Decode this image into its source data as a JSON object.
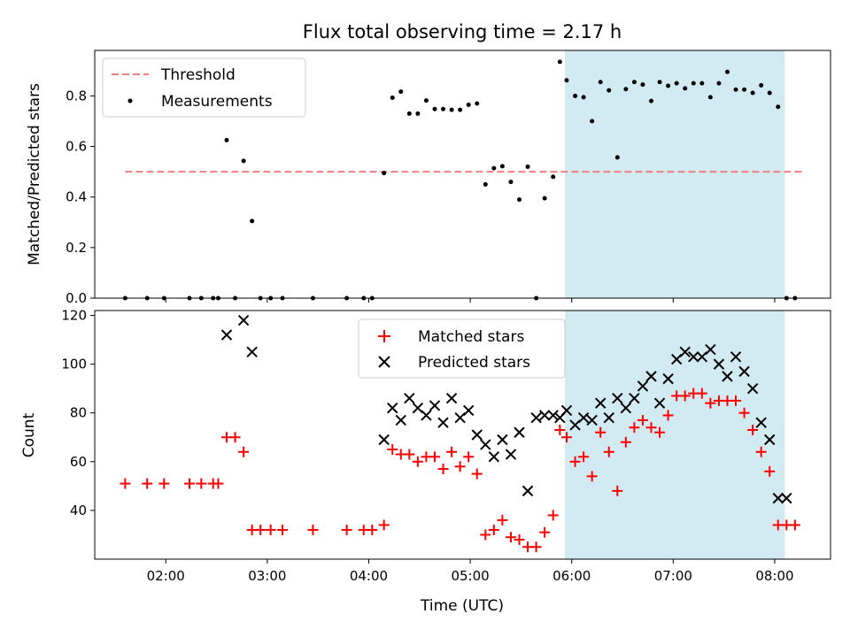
{
  "chart_data": [
    {
      "type": "scatter",
      "title": "Flux total observing time = 2.17 h",
      "xlabel": "",
      "ylabel": "Matched/Predicted stars",
      "x_unit": "hours UTC",
      "xlim": [
        "01:18",
        "08:33"
      ],
      "ylim": [
        0,
        0.98
      ],
      "yticks": [
        0.0,
        0.2,
        0.4,
        0.6,
        0.8
      ],
      "ytick_labels": [
        "0.0",
        "0.2",
        "0.4",
        "0.6",
        "0.8"
      ],
      "xticks": [
        "02:00",
        "03:00",
        "04:00",
        "05:00",
        "06:00",
        "07:00",
        "08:00"
      ],
      "shaded_region": {
        "x_start": "05:56",
        "x_end": "08:06",
        "color": "#add8e6"
      },
      "legend_position": "top-left",
      "series": [
        {
          "name": "Threshold",
          "style": "dashed-line",
          "color": "#f08080",
          "x": [
            "01:36",
            "08:16"
          ],
          "y": [
            0.5,
            0.5
          ]
        },
        {
          "name": "Measurements",
          "style": "dot",
          "color": "#000000",
          "x": [
            "01:36",
            "01:49",
            "01:59",
            "02:14",
            "02:21",
            "02:28",
            "02:31",
            "02:36",
            "02:41",
            "02:46",
            "02:51",
            "02:56",
            "03:02",
            "03:09",
            "03:27",
            "03:47",
            "03:57",
            "04:02",
            "04:09",
            "04:14",
            "04:19",
            "04:24",
            "04:29",
            "04:34",
            "04:39",
            "04:44",
            "04:49",
            "04:54",
            "04:59",
            "05:04",
            "05:09",
            "05:14",
            "05:19",
            "05:24",
            "05:29",
            "05:34",
            "05:39",
            "05:44",
            "05:49",
            "05:53",
            "05:57",
            "06:02",
            "06:07",
            "06:12",
            "06:17",
            "06:22",
            "06:27",
            "06:32",
            "06:37",
            "06:42",
            "06:47",
            "06:52",
            "06:57",
            "07:02",
            "07:07",
            "07:12",
            "07:17",
            "07:22",
            "07:27",
            "07:32",
            "07:37",
            "07:42",
            "07:47",
            "07:52",
            "07:57",
            "08:02",
            "08:07",
            "08:12"
          ],
          "y": [
            0.0,
            0.0,
            0.0,
            0.0,
            0.0,
            0.0,
            0.0,
            0.625,
            0.0,
            0.543,
            0.305,
            0.0,
            0.0,
            0.0,
            0.0,
            0.0,
            0.0,
            0.0,
            0.495,
            0.793,
            0.817,
            0.73,
            0.73,
            0.782,
            0.748,
            0.748,
            0.745,
            0.745,
            0.765,
            0.77,
            0.45,
            0.514,
            0.522,
            0.46,
            0.39,
            0.52,
            0.0,
            0.395,
            0.48,
            0.935,
            0.862,
            0.8,
            0.795,
            0.7,
            0.855,
            0.822,
            0.557,
            0.827,
            0.855,
            0.845,
            0.78,
            0.855,
            0.84,
            0.85,
            0.83,
            0.85,
            0.85,
            0.795,
            0.85,
            0.895,
            0.825,
            0.825,
            0.812,
            0.842,
            0.812,
            0.757,
            0.0,
            0.0
          ]
        }
      ]
    },
    {
      "type": "scatter",
      "title": "",
      "xlabel": "Time (UTC)",
      "ylabel": "Count",
      "xlim": [
        "01:18",
        "08:33"
      ],
      "ylim": [
        20,
        122
      ],
      "yticks": [
        40,
        60,
        80,
        100,
        120
      ],
      "xticks": [
        "02:00",
        "03:00",
        "04:00",
        "05:00",
        "06:00",
        "07:00",
        "08:00"
      ],
      "shaded_region": {
        "x_start": "05:56",
        "x_end": "08:06",
        "color": "#add8e6"
      },
      "legend_position": "top-center",
      "series": [
        {
          "name": "Matched stars",
          "style": "plus",
          "color": "#ff0000",
          "x": [
            "01:36",
            "01:49",
            "01:59",
            "02:14",
            "02:21",
            "02:28",
            "02:31",
            "02:36",
            "02:41",
            "02:46",
            "02:51",
            "02:56",
            "03:02",
            "03:09",
            "03:27",
            "03:47",
            "03:57",
            "04:02",
            "04:09",
            "04:14",
            "04:19",
            "04:24",
            "04:29",
            "04:34",
            "04:39",
            "04:44",
            "04:49",
            "04:54",
            "04:59",
            "05:04",
            "05:09",
            "05:14",
            "05:19",
            "05:24",
            "05:29",
            "05:34",
            "05:39",
            "05:44",
            "05:49",
            "05:53",
            "05:57",
            "06:02",
            "06:07",
            "06:12",
            "06:17",
            "06:22",
            "06:27",
            "06:32",
            "06:37",
            "06:42",
            "06:47",
            "06:52",
            "06:57",
            "07:02",
            "07:07",
            "07:12",
            "07:17",
            "07:22",
            "07:27",
            "07:32",
            "07:37",
            "07:42",
            "07:47",
            "07:52",
            "07:57",
            "08:02",
            "08:07",
            "08:12"
          ],
          "y": [
            51,
            51,
            51,
            51,
            51,
            51,
            51,
            70,
            70,
            64,
            32,
            32,
            32,
            32,
            32,
            32,
            32,
            32,
            34,
            65,
            63,
            63,
            60,
            62,
            62,
            57,
            64,
            58,
            62,
            55,
            30,
            32,
            36,
            29,
            28,
            25,
            25,
            31,
            38,
            73,
            70,
            60,
            62,
            54,
            72,
            64,
            48,
            68,
            74,
            77,
            74,
            72,
            79,
            87,
            87,
            88,
            88,
            84,
            85,
            85,
            85,
            80,
            73,
            64,
            56,
            34,
            34,
            34
          ]
        },
        {
          "name": "Predicted stars",
          "style": "x",
          "color": "#000000",
          "x": [
            "02:36",
            "02:46",
            "02:51",
            "04:09",
            "04:14",
            "04:19",
            "04:24",
            "04:29",
            "04:34",
            "04:39",
            "04:44",
            "04:49",
            "04:54",
            "04:59",
            "05:04",
            "05:09",
            "05:14",
            "05:19",
            "05:24",
            "05:29",
            "05:34",
            "05:39",
            "05:44",
            "05:49",
            "05:53",
            "05:57",
            "06:02",
            "06:07",
            "06:12",
            "06:17",
            "06:22",
            "06:27",
            "06:32",
            "06:37",
            "06:42",
            "06:47",
            "06:52",
            "06:57",
            "07:02",
            "07:07",
            "07:12",
            "07:17",
            "07:22",
            "07:27",
            "07:32",
            "07:37",
            "07:42",
            "07:47",
            "07:52",
            "07:57",
            "08:02",
            "08:07"
          ],
          "y": [
            112,
            118,
            105,
            69,
            82,
            77,
            86,
            82,
            79,
            83,
            76,
            86,
            78,
            81,
            71,
            67,
            62,
            69,
            63,
            72,
            48,
            78,
            79,
            79,
            78,
            81,
            75,
            78,
            77,
            84,
            78,
            86,
            82,
            86,
            91,
            95,
            84,
            94,
            102,
            105,
            103,
            103,
            106,
            100,
            95,
            103,
            97,
            90,
            76,
            69,
            45,
            45
          ]
        }
      ]
    }
  ]
}
